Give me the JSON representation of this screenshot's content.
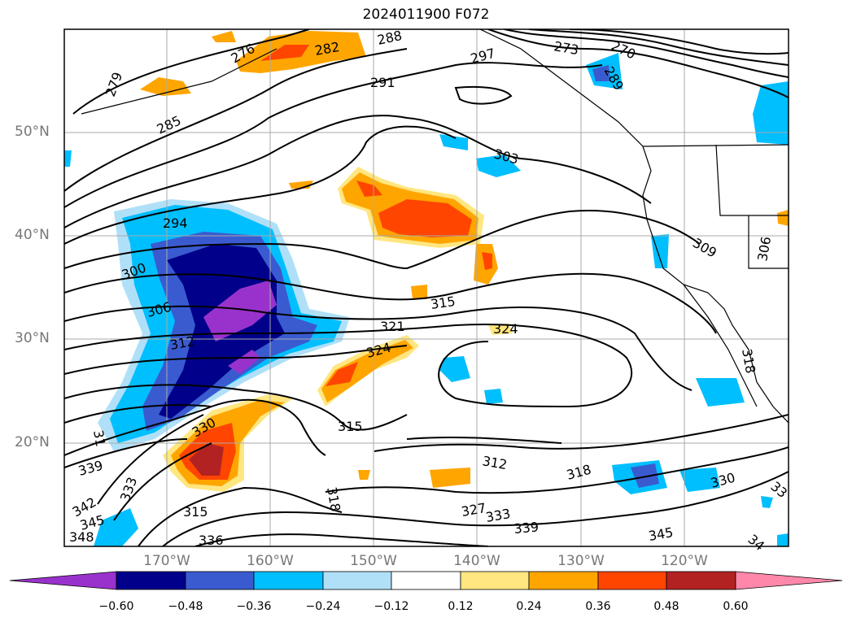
{
  "title": "2024011900 F072",
  "lat_labels": [
    "50°N",
    "40°N",
    "30°N",
    "20°N"
  ],
  "lon_labels": [
    "170°W",
    "160°W",
    "150°W",
    "140°W",
    "130°W",
    "120°W"
  ],
  "colorbar": {
    "ticks": [
      "−0.60",
      "−0.48",
      "−0.36",
      "−0.24",
      "−0.12",
      "0.12",
      "0.24",
      "0.36",
      "0.48",
      "0.60"
    ],
    "colors": [
      "#9932cc",
      "#00008b",
      "#3a5bd0",
      "#00bfff",
      "#b0e0f8",
      "#ffffff",
      "#ffe680",
      "#ffa500",
      "#ff4500",
      "#b22222",
      "#ff88aa"
    ]
  },
  "contour_labels": [
    "276",
    "282",
    "288",
    "279",
    "285",
    "291",
    "297",
    "273",
    "270",
    "289",
    "303",
    "294",
    "300",
    "306",
    "312",
    "309",
    "306",
    "315",
    "321",
    "324",
    "324",
    "318",
    "315",
    "312",
    "318",
    "327",
    "333",
    "339",
    "345",
    "330",
    "339",
    "342",
    "345",
    "348",
    "333",
    "336",
    "330",
    "318",
    "315",
    "33",
    "34",
    "31"
  ]
}
